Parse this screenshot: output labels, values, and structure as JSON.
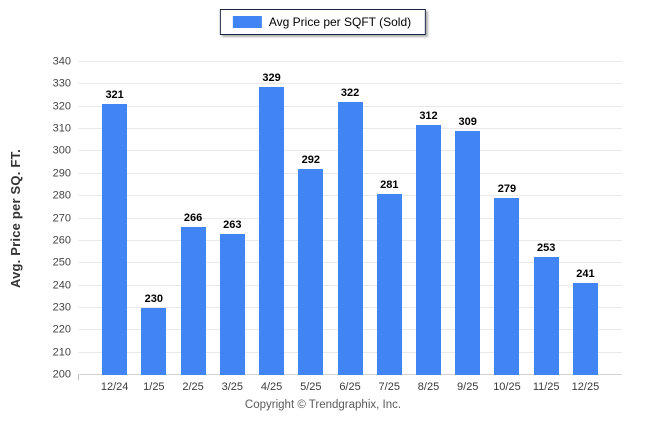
{
  "legend": {
    "label": "Avg Price per SQFT (Sold)"
  },
  "footer": {
    "copyright": "Copyright © Trendgraphix, Inc."
  },
  "colors": {
    "bar": "#4184F3",
    "grid": "#e9e9e9",
    "baseline": "#d4d4d4",
    "legend_border": "#1c2745"
  },
  "chart_data": {
    "type": "bar",
    "title": "",
    "xlabel": "",
    "ylabel": "Avg. Price per SQ. FT.",
    "categories": [
      "12/24",
      "1/25",
      "2/25",
      "3/25",
      "4/25",
      "5/25",
      "6/25",
      "7/25",
      "8/25",
      "9/25",
      "10/25",
      "11/25",
      "12/25"
    ],
    "values": [
      321,
      230,
      266,
      263,
      329,
      292,
      322,
      281,
      312,
      309,
      279,
      253,
      241
    ],
    "series": [
      {
        "name": "Avg Price per SQFT (Sold)",
        "values": [
          321,
          230,
          266,
          263,
          329,
          292,
          322,
          281,
          312,
          309,
          279,
          253,
          241
        ]
      }
    ],
    "ylim": [
      200,
      340
    ],
    "ytick_step": 10,
    "grid": true,
    "value_labels": true,
    "legend_position": "top-center"
  }
}
